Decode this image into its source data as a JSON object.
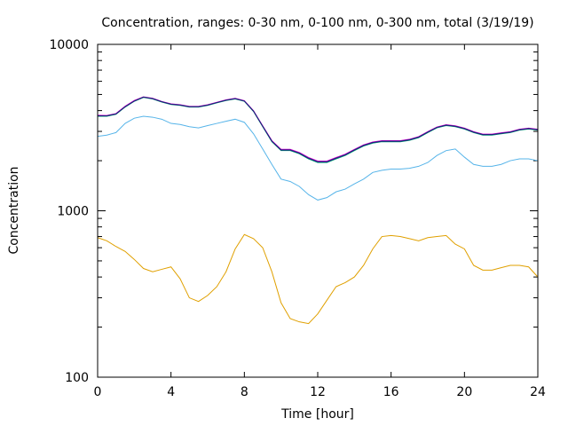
{
  "chart_data": {
    "type": "line",
    "title": "Concentration, ranges: 0-30 nm, 0-100 nm, 0-300 nm, total (3/19/19)",
    "xlabel": "Time [hour]",
    "ylabel": "Concentration",
    "xlim": [
      0,
      24
    ],
    "ylim": [
      100,
      10000
    ],
    "yscale": "log",
    "grid": false,
    "x_ticks": [
      "0",
      "4",
      "8",
      "12",
      "16",
      "20",
      "24"
    ],
    "y_ticks": [
      "100",
      "1000",
      "10000"
    ],
    "x": [
      0,
      0.5,
      1,
      1.5,
      2,
      2.5,
      3,
      3.5,
      4,
      4.5,
      5,
      5.5,
      6,
      6.5,
      7,
      7.5,
      8,
      8.5,
      9,
      9.5,
      10,
      10.5,
      11,
      11.5,
      12,
      12.5,
      13,
      13.5,
      14,
      14.5,
      15,
      15.5,
      16,
      16.5,
      17,
      17.5,
      18,
      18.5,
      19,
      19.5,
      20,
      20.5,
      21,
      21.5,
      22,
      22.5,
      23,
      23.5,
      24
    ],
    "series": [
      {
        "color": "#e0a000",
        "values": [
          690,
          660,
          610,
          570,
          510,
          450,
          430,
          445,
          460,
          390,
          300,
          285,
          310,
          350,
          430,
          590,
          720,
          680,
          600,
          430,
          280,
          225,
          215,
          210,
          240,
          290,
          350,
          370,
          400,
          470,
          590,
          700,
          710,
          700,
          680,
          660,
          690,
          700,
          710,
          630,
          590,
          470,
          440,
          440,
          455,
          470,
          470,
          460,
          400
        ]
      },
      {
        "color": "#56b4e9",
        "values": [
          2800,
          2850,
          2950,
          3350,
          3600,
          3700,
          3650,
          3550,
          3350,
          3300,
          3200,
          3150,
          3250,
          3350,
          3450,
          3550,
          3400,
          2900,
          2350,
          1900,
          1550,
          1500,
          1400,
          1250,
          1160,
          1200,
          1300,
          1350,
          1450,
          1550,
          1700,
          1750,
          1780,
          1780,
          1800,
          1850,
          1950,
          2150,
          2300,
          2350,
          2100,
          1900,
          1850,
          1850,
          1900,
          2000,
          2050,
          2050,
          2000
        ]
      },
      {
        "color": "#009e73",
        "values": [
          3700,
          3700,
          3800,
          4200,
          4550,
          4800,
          4700,
          4500,
          4350,
          4300,
          4200,
          4200,
          4300,
          4450,
          4600,
          4700,
          4550,
          3950,
          3200,
          2600,
          2300,
          2300,
          2200,
          2050,
          1950,
          1950,
          2050,
          2150,
          2300,
          2450,
          2550,
          2600,
          2600,
          2600,
          2650,
          2750,
          2950,
          3150,
          3250,
          3200,
          3100,
          2950,
          2850,
          2850,
          2900,
          2950,
          3050,
          3100,
          3050
        ]
      },
      {
        "color": "#cc00cc",
        "values": [
          3750,
          3740,
          3840,
          4250,
          4600,
          4840,
          4740,
          4540,
          4390,
          4340,
          4240,
          4240,
          4340,
          4490,
          4640,
          4740,
          4590,
          3990,
          3240,
          2640,
          2340,
          2340,
          2240,
          2090,
          1990,
          1990,
          2090,
          2190,
          2340,
          2490,
          2590,
          2640,
          2640,
          2640,
          2690,
          2790,
          2990,
          3190,
          3290,
          3240,
          3140,
          2990,
          2890,
          2890,
          2940,
          2990,
          3090,
          3140,
          3090
        ]
      },
      {
        "color": "#1a1a7a",
        "values": [
          3720,
          3720,
          3820,
          4220,
          4570,
          4820,
          4720,
          4520,
          4370,
          4320,
          4220,
          4220,
          4320,
          4470,
          4620,
          4720,
          4570,
          3970,
          3220,
          2620,
          2320,
          2320,
          2220,
          2070,
          1970,
          1970,
          2070,
          2170,
          2320,
          2470,
          2570,
          2620,
          2620,
          2620,
          2670,
          2770,
          2970,
          3170,
          3270,
          3220,
          3120,
          2970,
          2870,
          2870,
          2920,
          2970,
          3070,
          3120,
          3070
        ]
      }
    ]
  }
}
